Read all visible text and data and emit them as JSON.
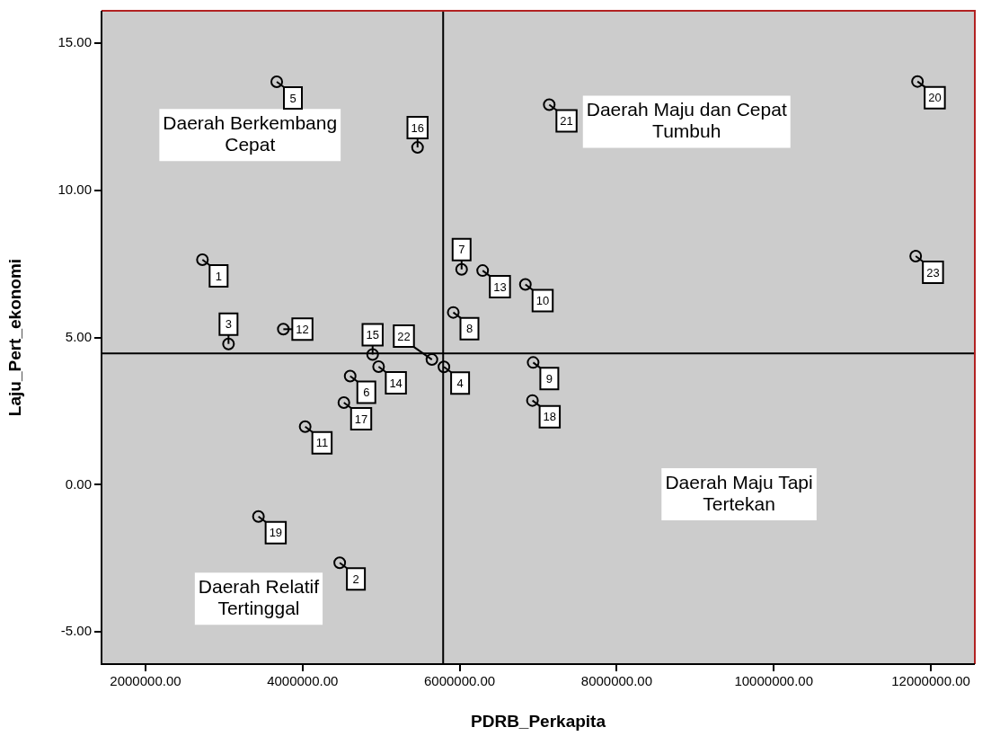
{
  "chart_data": {
    "type": "scatter",
    "xlabel": "PDRB_Perkapita",
    "ylabel": "Laju_Pert_ekonomi",
    "x": [
      2725000,
      4473000,
      3057000,
      5800000,
      3671000,
      4606000,
      6025000,
      5919000,
      6936000,
      6837000,
      4033000,
      3755000,
      6293000,
      4968000,
      4892000,
      5464000,
      4526000,
      6927000,
      3438000,
      11830000,
      7141000,
      5647000,
      11807000
    ],
    "series": [
      {
        "color": "#000000",
        "values": [
          7.64,
          -2.65,
          4.78,
          4.0,
          13.68,
          3.69,
          7.31,
          5.85,
          4.15,
          6.8,
          1.97,
          5.28,
          7.27,
          4.01,
          4.42,
          11.45,
          2.79,
          2.86,
          -1.08,
          13.69,
          12.9,
          4.25,
          7.76
        ]
      }
    ],
    "marker": "circle",
    "grid": false,
    "legend": false,
    "xlim": [
      1440000,
      12560000
    ],
    "ylim": [
      -6.09,
      16.09
    ],
    "xticks": [
      {
        "value": 2000000,
        "label": "2000000.00"
      },
      {
        "value": 4000000,
        "label": "4000000.00"
      },
      {
        "value": 6000000,
        "label": "6000000.00"
      },
      {
        "value": 8000000,
        "label": "8000000.00"
      },
      {
        "value": 10000000,
        "label": "10000000.00"
      },
      {
        "value": 12000000,
        "label": "12000000.00"
      }
    ],
    "yticks": [
      {
        "value": -5,
        "label": "-5.00"
      },
      {
        "value": 0,
        "label": "0.00"
      },
      {
        "value": 5,
        "label": "5.00"
      },
      {
        "value": 10,
        "label": "10.00"
      },
      {
        "value": 15,
        "label": "15.00"
      }
    ],
    "ref_lines": [
      {
        "axis": "x",
        "value": 5790000,
        "color": "#000000"
      },
      {
        "axis": "y",
        "value": 4.46,
        "color": "#000000"
      }
    ],
    "annotations": [
      "Daerah Berkembang Cepat",
      "Daerah Maju dan Cepat Tumbuh",
      "Daerah Maju Tapi Tertekan",
      "Daerah Relatif Tertinggal",
      {
        "text": "1",
        "x": 2725000,
        "y": 7.64
      },
      {
        "text": "2",
        "x": 4473000,
        "y": -2.65
      },
      {
        "text": "3",
        "x": 3057000,
        "y": 4.78
      },
      {
        "text": "4",
        "x": 5800000,
        "y": 4.0
      },
      {
        "text": "5",
        "x": 3671000,
        "y": 13.68
      },
      {
        "text": "6",
        "x": 4606000,
        "y": 3.69
      },
      {
        "text": "7",
        "x": 6025000,
        "y": 7.31
      },
      {
        "text": "8",
        "x": 5919000,
        "y": 5.85
      },
      {
        "text": "9",
        "x": 6936000,
        "y": 4.15
      },
      {
        "text": "10",
        "x": 6837000,
        "y": 6.8
      },
      {
        "text": "11",
        "x": 4033000,
        "y": 1.97
      },
      {
        "text": "12",
        "x": 3755000,
        "y": 5.28
      },
      {
        "text": "13",
        "x": 6293000,
        "y": 7.27
      },
      {
        "text": "14",
        "x": 4968000,
        "y": 4.01
      },
      {
        "text": "15",
        "x": 4892000,
        "y": 4.42
      },
      {
        "text": "16",
        "x": 5464000,
        "y": 11.45
      },
      {
        "text": "17",
        "x": 4526000,
        "y": 2.79
      },
      {
        "text": "18",
        "x": 6927000,
        "y": 2.86
      },
      {
        "text": "19",
        "x": 3438000,
        "y": -1.08
      },
      {
        "text": "20",
        "x": 11830000,
        "y": 13.69
      },
      {
        "text": "21",
        "x": 7141000,
        "y": 12.9
      },
      {
        "text": "22",
        "x": 5647000,
        "y": 4.25
      },
      {
        "text": "23",
        "x": 11807000,
        "y": 7.76
      }
    ]
  }
}
